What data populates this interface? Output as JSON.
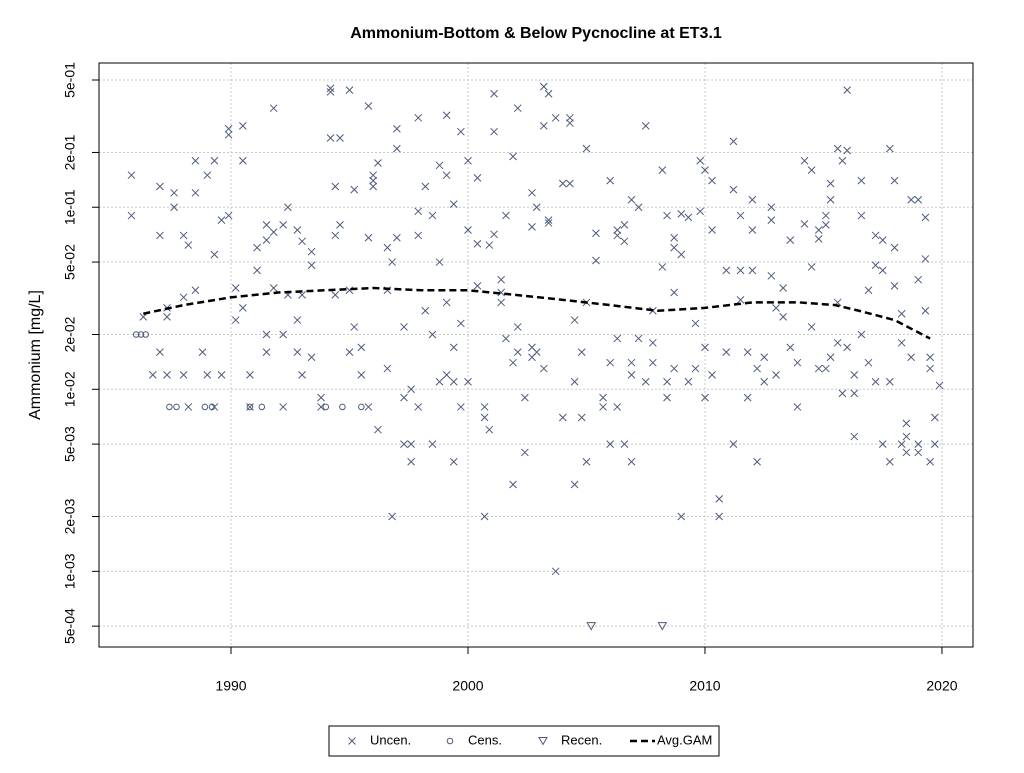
{
  "chart_data": {
    "type": "scatter",
    "title": "Ammonium-Bottom & Below Pycnocline at ET3.1",
    "y_label": "Ammonium [mg/L]",
    "log_y": true,
    "grid": true,
    "legend": "bottom",
    "xlim": [
      1984.43,
      2021.31
    ],
    "xticks": [
      1990,
      2000,
      2010,
      2020
    ],
    "ylim": [
      0.000384,
      0.62
    ],
    "yticks": [
      {
        "value": 0.0005,
        "label": "5e-04"
      },
      {
        "value": 0.001,
        "label": "1e-03"
      },
      {
        "value": 0.002,
        "label": "2e-03"
      },
      {
        "value": 0.005,
        "label": "5e-03"
      },
      {
        "value": 0.01,
        "label": "1e-02"
      },
      {
        "value": 0.02,
        "label": "2e-02"
      },
      {
        "value": 0.05,
        "label": "5e-02"
      },
      {
        "value": 0.1,
        "label": "1e-01"
      },
      {
        "value": 0.2,
        "label": "2e-01"
      },
      {
        "value": 0.5,
        "label": "5e-01"
      }
    ],
    "series": [
      {
        "name": "Uncen.",
        "marker": "x",
        "color": "#4d5b7c",
        "x": [
          1985.8,
          1985.8,
          1986.3,
          1986.7,
          1987.0,
          1987.0,
          1987.0,
          1987.3,
          1987.3,
          1987.3,
          1987.6,
          1987.6,
          1988.0,
          1988.0,
          1988.0,
          1988.2,
          1988.2,
          1988.5,
          1988.5,
          1988.5,
          1988.8,
          1989.0,
          1989.0,
          1989.3,
          1989.3,
          1989.3,
          1989.6,
          1989.6,
          1989.9,
          1989.9,
          1989.9,
          1990.2,
          1990.2,
          1990.5,
          1990.5,
          1990.5,
          1990.8,
          1990.8,
          1991.1,
          1991.1,
          1991.5,
          1991.5,
          1991.5,
          1991.5,
          1991.8,
          1991.8,
          1991.8,
          1992.2,
          1992.2,
          1992.2,
          1992.4,
          1992.4,
          1992.8,
          1992.8,
          1992.8,
          1993.0,
          1993.0,
          1993.0,
          1993.4,
          1993.4,
          1993.4,
          1993.8,
          1993.8,
          1994.2,
          1994.2,
          1994.2,
          1994.4,
          1994.4,
          1994.4,
          1994.6,
          1994.6,
          1995.0,
          1995.0,
          1995.0,
          1995.2,
          1995.2,
          1995.5,
          1995.5,
          1995.8,
          1995.8,
          1995.8,
          1996.0,
          1996.0,
          1996.0,
          1996.2,
          1996.2,
          1996.6,
          1996.6,
          1996.6,
          1996.8,
          1996.8,
          1997.0,
          1997.0,
          1997.0,
          1997.3,
          1997.3,
          1997.3,
          1997.6,
          1997.6,
          1997.6,
          1997.9,
          1997.9,
          1997.9,
          1997.9,
          1998.2,
          1998.2,
          1998.5,
          1998.5,
          1998.5,
          1998.8,
          1998.8,
          1998.8,
          1999.1,
          1999.1,
          1999.1,
          1999.1,
          1999.4,
          1999.4,
          1999.4,
          1999.4,
          1999.7,
          1999.7,
          1999.7,
          2000.0,
          2000.0,
          2000.0,
          2000.4,
          2000.4,
          2000.4,
          2000.7,
          2000.7,
          2000.7,
          2000.9,
          2000.9,
          2001.1,
          2001.1,
          2001.1,
          2001.4,
          2001.4,
          2001.4,
          2001.6,
          2001.6,
          2001.9,
          2001.9,
          2001.9,
          2002.1,
          2002.1,
          2002.1,
          2002.4,
          2002.4,
          2002.7,
          2002.7,
          2002.7,
          2002.7,
          2002.9,
          2002.9,
          2003.2,
          2003.2,
          2003.2,
          2003.4,
          2003.4,
          2003.4,
          2003.7,
          2003.7,
          2004.0,
          2004.0,
          2004.3,
          2004.3,
          2004.3,
          2004.5,
          2004.5,
          2004.5,
          2004.8,
          2004.8,
          2005.0,
          2005.0,
          2005.0,
          2005.4,
          2005.4,
          2005.7,
          2005.7,
          2006.0,
          2006.0,
          2006.0,
          2006.3,
          2006.3,
          2006.3,
          2006.3,
          2006.6,
          2006.6,
          2006.6,
          2006.9,
          2006.9,
          2006.9,
          2006.9,
          2007.2,
          2007.2,
          2007.5,
          2007.5,
          2007.8,
          2007.8,
          2007.8,
          2008.2,
          2008.2,
          2008.4,
          2008.4,
          2008.4,
          2008.7,
          2008.7,
          2008.7,
          2008.7,
          2009.0,
          2009.0,
          2009.0,
          2009.3,
          2009.3,
          2009.6,
          2009.6,
          2009.8,
          2009.8,
          2010.0,
          2010.0,
          2010.0,
          2010.3,
          2010.3,
          2010.3,
          2010.6,
          2010.6,
          2010.9,
          2010.9,
          2011.2,
          2011.2,
          2011.2,
          2011.5,
          2011.5,
          2011.5,
          2011.8,
          2011.8,
          2012.0,
          2012.0,
          2012.0,
          2012.2,
          2012.2,
          2012.5,
          2012.5,
          2012.8,
          2012.8,
          2012.8,
          2013.0,
          2013.0,
          2013.3,
          2013.3,
          2013.6,
          2013.6,
          2013.9,
          2013.9,
          2014.2,
          2014.2,
          2014.5,
          2014.5,
          2014.5,
          2014.8,
          2014.8,
          2014.8,
          2015.1,
          2015.1,
          2015.1,
          2015.3,
          2015.3,
          2015.3,
          2015.6,
          2015.6,
          2015.6,
          2015.8,
          2015.8,
          2016.0,
          2016.0,
          2016.0,
          2016.3,
          2016.3,
          2016.3,
          2016.6,
          2016.6,
          2016.6,
          2016.9,
          2016.9,
          2017.2,
          2017.2,
          2017.2,
          2017.5,
          2017.5,
          2017.5,
          2017.8,
          2017.8,
          2017.8,
          2018.0,
          2018.0,
          2018.0,
          2018.3,
          2018.3,
          2018.3,
          2018.5,
          2018.5,
          2018.5,
          2018.7,
          2018.7,
          2019.0,
          2019.0,
          2019.0,
          2019.0,
          2019.3,
          2019.3,
          2019.3,
          2019.5,
          2019.5,
          2019.5,
          2019.7,
          2019.7,
          2019.9
        ],
        "values": [
          0.15,
          0.09,
          0.025,
          0.012,
          0.13,
          0.07,
          0.016,
          0.028,
          0.025,
          0.012,
          0.12,
          0.1,
          0.07,
          0.012,
          0.032,
          0.062,
          0.008,
          0.18,
          0.12,
          0.035,
          0.016,
          0.15,
          0.012,
          0.18,
          0.055,
          0.008,
          0.085,
          0.012,
          0.27,
          0.25,
          0.09,
          0.024,
          0.036,
          0.28,
          0.18,
          0.028,
          0.012,
          0.008,
          0.045,
          0.06,
          0.08,
          0.066,
          0.02,
          0.016,
          0.35,
          0.073,
          0.036,
          0.08,
          0.02,
          0.008,
          0.1,
          0.033,
          0.075,
          0.024,
          0.016,
          0.012,
          0.065,
          0.033,
          0.057,
          0.048,
          0.015,
          0.009,
          0.008,
          0.24,
          0.45,
          0.43,
          0.07,
          0.13,
          0.033,
          0.24,
          0.08,
          0.44,
          0.016,
          0.035,
          0.125,
          0.022,
          0.012,
          0.017,
          0.36,
          0.068,
          0.008,
          0.15,
          0.13,
          0.14,
          0.175,
          0.006,
          0.06,
          0.035,
          0.013,
          0.05,
          0.002,
          0.21,
          0.27,
          0.068,
          0.022,
          0.009,
          0.005,
          0.01,
          0.005,
          0.004,
          0.31,
          0.095,
          0.07,
          0.008,
          0.13,
          0.027,
          0.09,
          0.02,
          0.005,
          0.17,
          0.05,
          0.011,
          0.32,
          0.15,
          0.03,
          0.012,
          0.104,
          0.017,
          0.004,
          0.011,
          0.26,
          0.023,
          0.008,
          0.18,
          0.075,
          0.011,
          0.145,
          0.063,
          0.037,
          0.007,
          0.008,
          0.002,
          0.006,
          0.062,
          0.26,
          0.42,
          0.071,
          0.034,
          0.03,
          0.04,
          0.09,
          0.019,
          0.003,
          0.014,
          0.19,
          0.35,
          0.022,
          0.016,
          0.009,
          0.0045,
          0.078,
          0.12,
          0.015,
          0.017,
          0.1,
          0.016,
          0.46,
          0.28,
          0.013,
          0.42,
          0.085,
          0.082,
          0.001,
          0.31,
          0.135,
          0.007,
          0.29,
          0.31,
          0.135,
          0.024,
          0.011,
          0.003,
          0.007,
          0.016,
          0.21,
          0.03,
          0.004,
          0.051,
          0.072,
          0.009,
          0.008,
          0.005,
          0.14,
          0.014,
          0.075,
          0.07,
          0.019,
          0.008,
          0.065,
          0.08,
          0.005,
          0.11,
          0.014,
          0.012,
          0.004,
          0.1,
          0.019,
          0.28,
          0.011,
          0.027,
          0.018,
          0.014,
          0.16,
          0.047,
          0.09,
          0.011,
          0.009,
          0.06,
          0.034,
          0.013,
          0.068,
          0.055,
          0.002,
          0.092,
          0.088,
          0.011,
          0.023,
          0.013,
          0.18,
          0.095,
          0.16,
          0.017,
          0.009,
          0.075,
          0.012,
          0.14,
          0.002,
          0.0025,
          0.045,
          0.016,
          0.23,
          0.125,
          0.005,
          0.09,
          0.045,
          0.031,
          0.016,
          0.009,
          0.11,
          0.075,
          0.045,
          0.013,
          0.004,
          0.015,
          0.011,
          0.1,
          0.085,
          0.042,
          0.012,
          0.028,
          0.036,
          0.025,
          0.066,
          0.017,
          0.008,
          0.014,
          0.18,
          0.081,
          0.16,
          0.047,
          0.022,
          0.075,
          0.067,
          0.013,
          0.09,
          0.08,
          0.013,
          0.135,
          0.11,
          0.015,
          0.21,
          0.018,
          0.03,
          0.18,
          0.0095,
          0.44,
          0.205,
          0.017,
          0.0095,
          0.012,
          0.0055,
          0.09,
          0.14,
          0.02,
          0.035,
          0.014,
          0.07,
          0.048,
          0.011,
          0.066,
          0.005,
          0.045,
          0.21,
          0.011,
          0.004,
          0.14,
          0.06,
          0.037,
          0.026,
          0.018,
          0.005,
          0.0055,
          0.0045,
          0.0065,
          0.11,
          0.015,
          0.11,
          0.04,
          0.005,
          0.0045,
          0.088,
          0.052,
          0.027,
          0.015,
          0.013,
          0.004,
          0.007,
          0.005,
          0.0105
        ]
      },
      {
        "name": "Cens.",
        "marker": "circle",
        "color": "#4d5b7c",
        "x": [
          1986.0,
          1986.2,
          1986.4,
          1987.4,
          1987.7,
          1988.9,
          1989.2,
          1990.8,
          1991.3,
          1994.0,
          1994.7,
          1995.5
        ],
        "values": [
          0.02,
          0.02,
          0.02,
          0.008,
          0.008,
          0.008,
          0.008,
          0.008,
          0.008,
          0.008,
          0.008,
          0.008
        ]
      },
      {
        "name": "Recen.",
        "marker": "triangle",
        "color": "#4d5b7c",
        "x": [
          2005.2,
          2008.2
        ],
        "values": [
          0.0005,
          0.0005
        ]
      },
      {
        "name": "Avg.GAM",
        "marker": "line",
        "line_style": "dashed",
        "color": "#000000",
        "x": [
          1986.3,
          1988,
          1990,
          1992,
          1994,
          1996,
          1998,
          2000,
          2002,
          2004,
          2006,
          2008,
          2010,
          2012,
          2014,
          2015.5,
          2016.5,
          2018,
          2019.5
        ],
        "values": [
          0.026,
          0.029,
          0.032,
          0.034,
          0.035,
          0.036,
          0.035,
          0.035,
          0.033,
          0.031,
          0.029,
          0.027,
          0.028,
          0.03,
          0.03,
          0.029,
          0.027,
          0.024,
          0.019
        ]
      }
    ]
  }
}
